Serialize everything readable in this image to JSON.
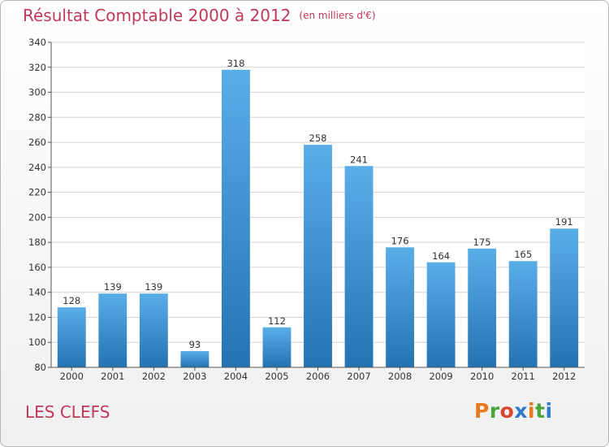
{
  "header": {
    "title": "Résultat Comptable 2000 à 2012",
    "subtitle": "(en milliers d'€)"
  },
  "footer": {
    "place": "LES CLEFS",
    "brand": "Proxiti"
  },
  "colors": {
    "title": "#c0385a",
    "bar_light": "#5aaee8",
    "bar_dark": "#2472b2",
    "grid": "#d4d4d4",
    "axis_text": "#333333",
    "brand_letters": [
      "#e7781d",
      "#4aa53d",
      "#d8472e",
      "#2e79c8",
      "#e7781d",
      "#4aa53d",
      "#2e79c8"
    ]
  },
  "chart_data": {
    "type": "bar",
    "title": "Résultat Comptable 2000 à 2012",
    "subtitle": "(en milliers d'€)",
    "xlabel": "",
    "ylabel": "",
    "categories": [
      "2000",
      "2001",
      "2002",
      "2003",
      "2004",
      "2005",
      "2006",
      "2007",
      "2008",
      "2009",
      "2010",
      "2011",
      "2012"
    ],
    "values": [
      128,
      139,
      139,
      93,
      318,
      112,
      258,
      241,
      176,
      164,
      175,
      165,
      191
    ],
    "ylim": [
      80,
      340
    ],
    "yticks": [
      80,
      100,
      120,
      140,
      160,
      180,
      200,
      220,
      240,
      260,
      280,
      300,
      320,
      340
    ],
    "grid": true,
    "legend": "none"
  }
}
